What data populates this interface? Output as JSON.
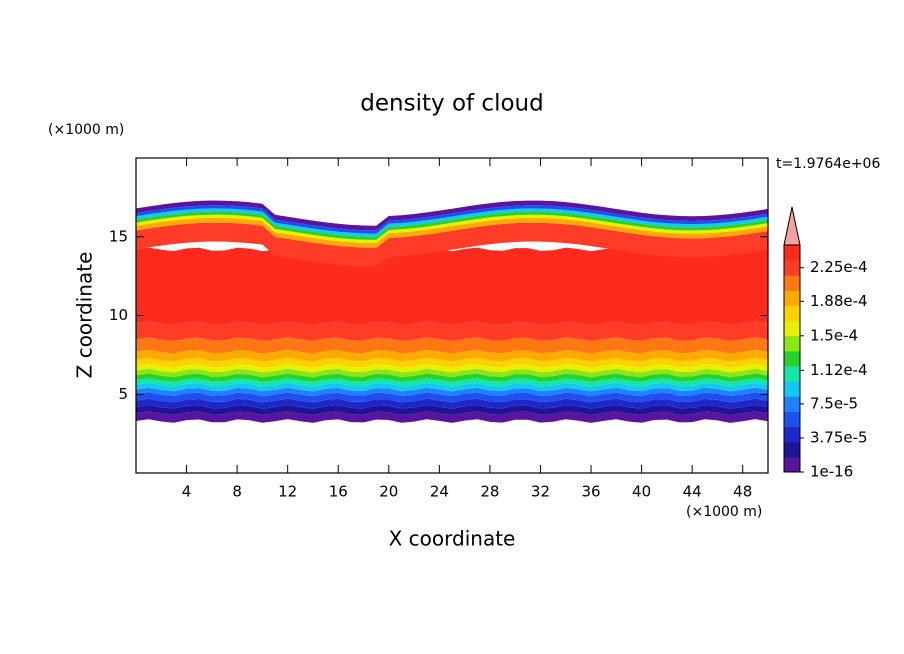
{
  "chart_data": {
    "type": "contour",
    "title": "density of cloud",
    "x_label": "X coordinate",
    "y_label": "Z coordinate",
    "x_unit": "(×1000 m)",
    "y_unit": "(×1000 m)",
    "annotation": "t=1.9764e+06",
    "xlim": [
      0,
      50
    ],
    "xticks": [
      4,
      8,
      12,
      16,
      20,
      24,
      28,
      32,
      36,
      40,
      44,
      48
    ],
    "ylim": [
      0,
      20
    ],
    "yticks": [
      5,
      10,
      15
    ],
    "colorbar": {
      "lim": [
        1e-16,
        0.00025
      ],
      "extend": "max",
      "extend_color": "#f4a0a0",
      "ticks": [
        {
          "value": 1e-16,
          "label": "1e-16"
        },
        {
          "value": 3.75e-05,
          "label": "3.75e-5"
        },
        {
          "value": 7.5e-05,
          "label": "7.5e-5"
        },
        {
          "value": 0.000112,
          "label": "1.12e-4"
        },
        {
          "value": 0.00015,
          "label": "1.5e-4"
        },
        {
          "value": 0.000188,
          "label": "1.88e-4"
        },
        {
          "value": 0.000225,
          "label": "2.25e-4"
        }
      ],
      "colors": [
        "#5a14a0",
        "#1e1496",
        "#1e28c8",
        "#1e50f0",
        "#1e82ff",
        "#14c8f0",
        "#14e6aa",
        "#28d228",
        "#8ce614",
        "#e6f000",
        "#ffd200",
        "#ffaa00",
        "#ff7814",
        "#ff3c28",
        "#ff2a1e"
      ]
    }
  }
}
